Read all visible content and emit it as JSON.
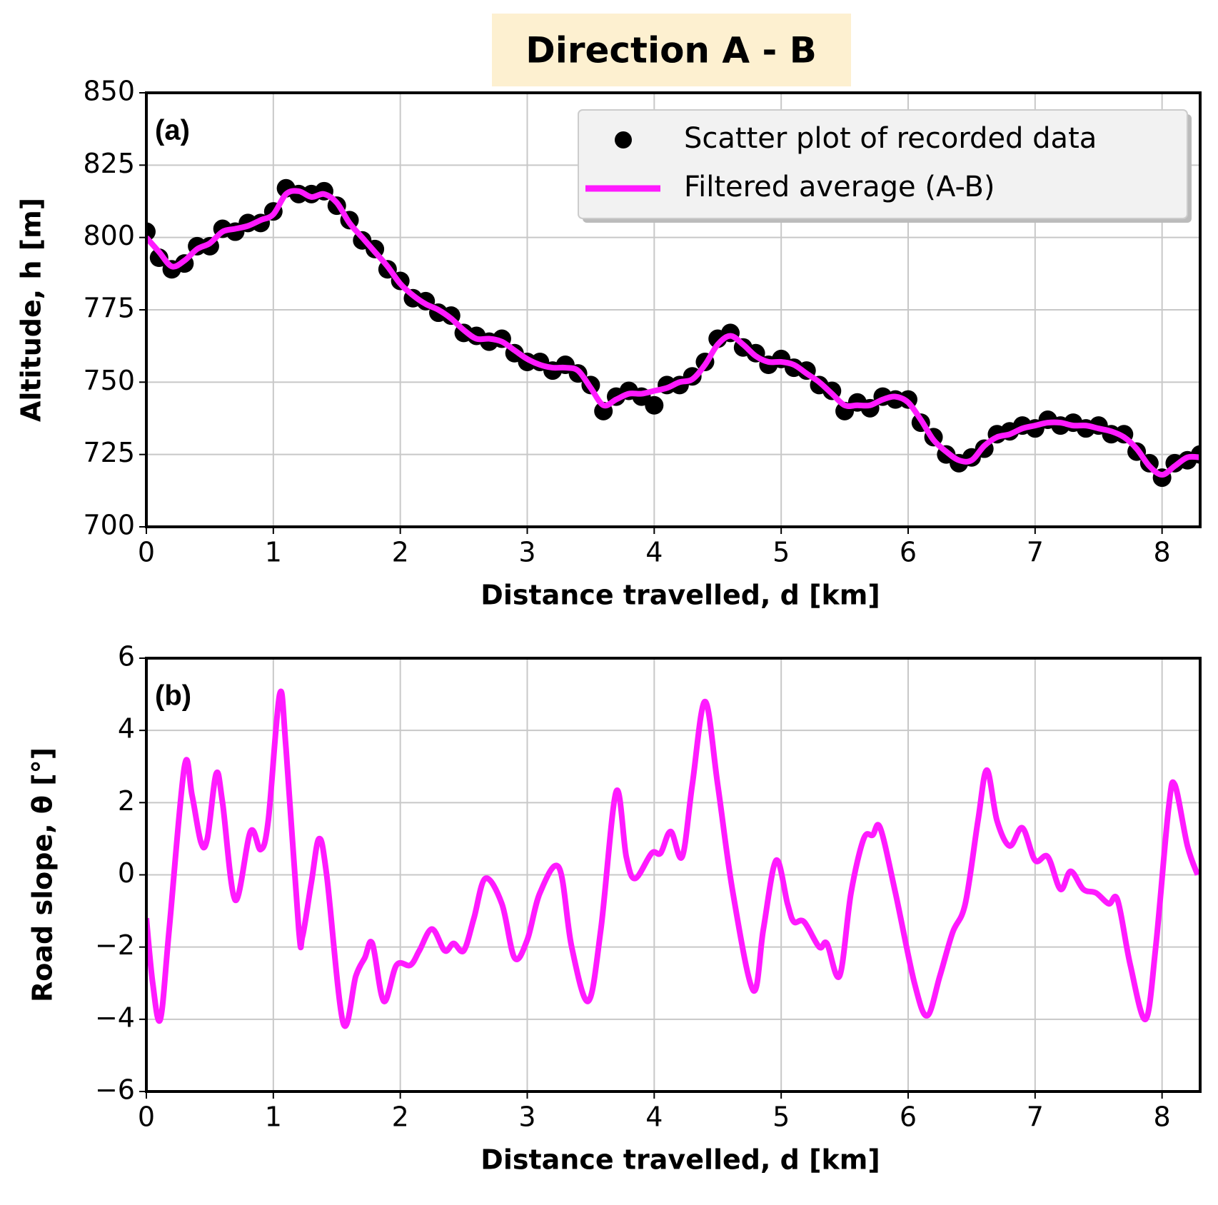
{
  "chart_data": [
    {
      "type": "line",
      "title": "Direction A - B",
      "annotation": "(a)",
      "x_label": "Distance travelled, d [km]",
      "y_label": "Altitude, h [m]",
      "x": [
        0,
        0.1,
        0.2,
        0.3,
        0.4,
        0.5,
        0.6,
        0.7,
        0.8,
        0.9,
        1,
        1.1,
        1.2,
        1.3,
        1.4,
        1.5,
        1.6,
        1.7,
        1.8,
        1.9,
        2,
        2.1,
        2.2,
        2.3,
        2.4,
        2.5,
        2.6,
        2.7,
        2.8,
        2.9,
        3,
        3.1,
        3.2,
        3.3,
        3.4,
        3.5,
        3.6,
        3.7,
        3.8,
        3.9,
        4,
        4.1,
        4.2,
        4.3,
        4.4,
        4.5,
        4.6,
        4.7,
        4.8,
        4.9,
        5,
        5.1,
        5.2,
        5.3,
        5.4,
        5.5,
        5.6,
        5.7,
        5.8,
        5.9,
        6,
        6.1,
        6.2,
        6.3,
        6.4,
        6.5,
        6.6,
        6.7,
        6.8,
        6.9,
        7,
        7.1,
        7.2,
        7.3,
        7.4,
        7.5,
        7.6,
        7.7,
        7.8,
        7.9,
        8,
        8.1,
        8.2,
        8.3
      ],
      "series": [
        {
          "name": "Scatter plot of recorded data",
          "type": "scatter",
          "color": "#000000",
          "values": [
            802,
            793,
            789,
            791,
            797,
            797,
            803,
            802,
            805,
            805,
            809,
            817,
            815,
            815,
            816,
            811,
            806,
            799,
            796,
            789,
            785,
            779,
            778,
            774,
            773,
            767,
            766,
            764,
            765,
            760,
            757,
            757,
            754,
            756,
            753,
            749,
            740,
            745,
            747,
            745,
            742,
            749,
            749,
            752,
            757,
            765,
            767,
            762,
            760,
            756,
            758,
            755,
            754,
            749,
            747,
            740,
            743,
            741,
            745,
            744,
            744,
            736,
            731,
            725,
            722,
            724,
            727,
            732,
            733,
            735,
            734,
            737,
            735,
            736,
            734,
            735,
            732,
            732,
            726,
            722,
            717,
            722,
            723,
            725
          ]
        },
        {
          "name": "Filtered average (A-B)",
          "type": "line",
          "color": "#ff1aff",
          "values": [
            800,
            795,
            790,
            792,
            796,
            798,
            802,
            803,
            804,
            806,
            808,
            815,
            816,
            814,
            815,
            812,
            805,
            800,
            795,
            790,
            784,
            780,
            777,
            775,
            772,
            768,
            765,
            765,
            764,
            761,
            758,
            756,
            755,
            755,
            754,
            748,
            742,
            744,
            746,
            746,
            747,
            748,
            750,
            751,
            756,
            763,
            766,
            763,
            759,
            757,
            757,
            756,
            753,
            750,
            746,
            742,
            742,
            742,
            744,
            745,
            743,
            737,
            730,
            726,
            723,
            723,
            728,
            731,
            732,
            734,
            735,
            736,
            736,
            735,
            735,
            734,
            733,
            731,
            727,
            721,
            718,
            721,
            724,
            724
          ]
        }
      ],
      "xlim": [
        0,
        8.3
      ],
      "xticks": [
        0,
        1,
        2,
        3,
        4,
        5,
        6,
        7,
        8
      ],
      "ylim": [
        700,
        850
      ],
      "yticks": [
        700,
        725,
        750,
        775,
        800,
        825,
        850
      ],
      "grid": true,
      "legend": "upper right"
    },
    {
      "type": "line",
      "annotation": "(b)",
      "x_label": "Distance travelled, d [km]",
      "y_label": "Road slope, θ [°]",
      "color": "#ff1aff",
      "x": [
        0,
        0.05,
        0.11,
        0.18,
        0.3,
        0.36,
        0.43,
        0.48,
        0.55,
        0.6,
        0.7,
        0.82,
        0.9,
        0.96,
        1.05,
        1.1,
        1.2,
        1.23,
        1.3,
        1.36,
        1.42,
        1.55,
        1.65,
        1.72,
        1.78,
        1.87,
        1.97,
        2.08,
        2.15,
        2.25,
        2.35,
        2.42,
        2.5,
        2.58,
        2.67,
        2.8,
        2.9,
        3,
        3.1,
        3.25,
        3.35,
        3.48,
        3.58,
        3.7,
        3.78,
        3.85,
        3.98,
        4.05,
        4.13,
        4.22,
        4.3,
        4.4,
        4.5,
        4.62,
        4.78,
        4.86,
        4.96,
        5.05,
        5.1,
        5.18,
        5.3,
        5.36,
        5.46,
        5.55,
        5.65,
        5.72,
        5.78,
        5.9,
        6.05,
        6.15,
        6.25,
        6.35,
        6.45,
        6.55,
        6.62,
        6.7,
        6.8,
        6.9,
        7,
        7.1,
        7.2,
        7.28,
        7.38,
        7.48,
        7.58,
        7.65,
        7.75,
        7.87,
        7.95,
        8.05,
        8.1,
        8.2,
        8.28
      ],
      "values": [
        -1.2,
        -3,
        -4,
        -1.5,
        3,
        2.2,
        0.9,
        1,
        2.8,
        2,
        -0.7,
        1.2,
        0.7,
        1.5,
        5,
        3.5,
        -1.5,
        -1.7,
        -0.2,
        1,
        0,
        -4.1,
        -2.8,
        -2.3,
        -1.9,
        -3.5,
        -2.5,
        -2.5,
        -2.1,
        -1.5,
        -2.1,
        -1.9,
        -2.1,
        -1.2,
        -0.1,
        -0.8,
        -2.3,
        -1.8,
        -0.5,
        0.2,
        -2,
        -3.5,
        -1.5,
        2.3,
        0.5,
        -0.1,
        0.6,
        0.6,
        1.2,
        0.5,
        2.5,
        4.8,
        2.5,
        -0.5,
        -3.2,
        -1.5,
        0.4,
        -0.8,
        -1.3,
        -1.3,
        -2,
        -1.9,
        -2.8,
        -0.5,
        1,
        1.1,
        1.3,
        -0.5,
        -3,
        -3.9,
        -2.8,
        -1.6,
        -0.8,
        1.5,
        2.9,
        1.5,
        0.8,
        1.3,
        0.4,
        0.5,
        -0.4,
        0.1,
        -0.4,
        -0.5,
        -0.8,
        -0.7,
        -2.5,
        -4,
        -2,
        1.8,
        2.5,
        0.8,
        0
      ],
      "xlim": [
        0,
        8.3
      ],
      "xticks": [
        0,
        1,
        2,
        3,
        4,
        5,
        6,
        7,
        8
      ],
      "ylim": [
        -6,
        6
      ],
      "yticks": [
        {
          "value": -6,
          "label": "−6"
        },
        {
          "value": -4,
          "label": "−4"
        },
        {
          "value": -2,
          "label": "−2"
        },
        0,
        2,
        4,
        6
      ],
      "grid": true
    }
  ]
}
